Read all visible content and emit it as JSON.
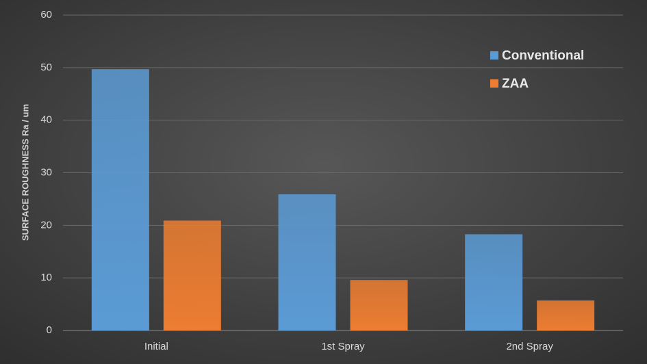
{
  "chart_data": {
    "type": "bar",
    "y_label": "SURFACE ROUGHNESS Ra / um",
    "categories": [
      "Initial",
      "1st Spray",
      "2nd Spray"
    ],
    "series": [
      {
        "name": "Conventional",
        "color": "#5b9bd5",
        "values": [
          49.7,
          25.9,
          18.3
        ]
      },
      {
        "name": "ZAA",
        "color": "#ed7d31",
        "values": [
          20.9,
          9.6,
          5.7
        ]
      }
    ],
    "ylim": [
      0,
      60
    ],
    "yticks": [
      0,
      10,
      20,
      30,
      40,
      50,
      60
    ],
    "grid": true,
    "legend": "top-right"
  }
}
